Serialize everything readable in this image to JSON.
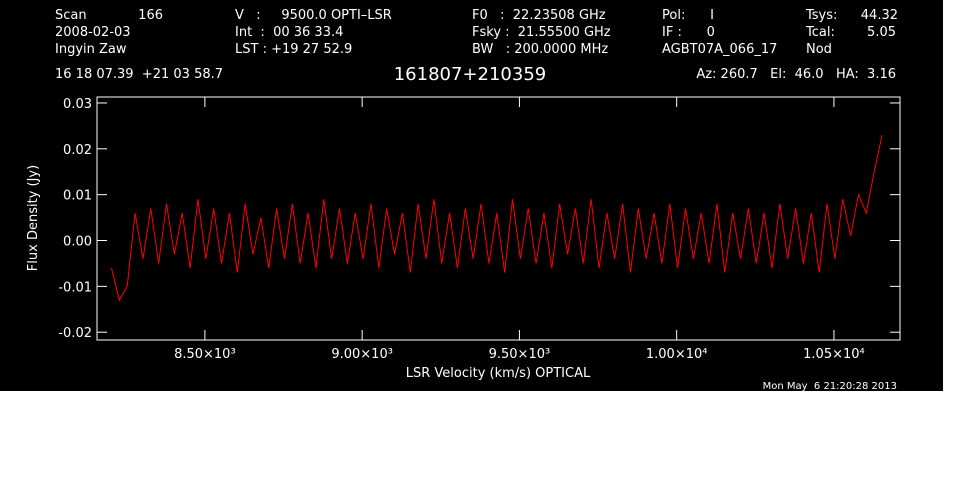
{
  "chart_data": {
    "type": "line",
    "title": "161807+210359",
    "header": [
      "Scan",
      "166",
      "2008-02-03",
      "Ingyin Zaw",
      "V   :     9500.0 OPTI–LSR",
      "Int  :  00 36 33.4",
      "LST : +19 27 52.9",
      "F0   :  22.23508 GHz",
      "Fsky :  21.55500 GHz",
      "BW   : 200.0000 MHz",
      "Pol:      I",
      "IF :      0",
      "AGBT07A_066_17",
      "Tsys:",
      "44.32",
      "Tcal:",
      "5.05",
      "Nod",
      "16 18 07.39  +21 03 58.7",
      "Az: 260.7   El:  46.0   HA:  3.16"
    ],
    "x_label": "LSR Velocity (km/s) OPTICAL",
    "y_label": "Flux Density (Jy)",
    "timestamp": "Mon May  6 21:20:28 2013",
    "xlim": [
      8157,
      10710
    ],
    "ylim": [
      -0.0217,
      0.0313
    ],
    "xticks": [
      {
        "value": 8500,
        "label": "8.50×10³"
      },
      {
        "value": 9000,
        "label": "9.00×10³"
      },
      {
        "value": 9500,
        "label": "9.50×10³"
      },
      {
        "value": 10000,
        "label": "1.00×10⁴"
      },
      {
        "value": 10500,
        "label": "1.05×10⁴"
      }
    ],
    "yticks": [
      0.03,
      0.02,
      0.01,
      {
        "value": 0,
        "label": "0.00"
      },
      -0.01,
      -0.02
    ],
    "x": [
      8203,
      8228,
      8253,
      8278,
      8303,
      8328,
      8353,
      8378,
      8403,
      8428,
      8453,
      8478,
      8503,
      8528,
      8553,
      8578,
      8603,
      8628,
      8653,
      8678,
      8703,
      8728,
      8753,
      8778,
      8803,
      8828,
      8853,
      8878,
      8903,
      8928,
      8953,
      8978,
      9003,
      9028,
      9053,
      9078,
      9103,
      9128,
      9153,
      9178,
      9203,
      9228,
      9253,
      9278,
      9303,
      9328,
      9353,
      9378,
      9403,
      9428,
      9453,
      9478,
      9503,
      9528,
      9553,
      9578,
      9603,
      9628,
      9653,
      9678,
      9703,
      9728,
      9753,
      9778,
      9803,
      9828,
      9853,
      9878,
      9903,
      9928,
      9953,
      9978,
      10003,
      10028,
      10053,
      10078,
      10103,
      10128,
      10153,
      10178,
      10203,
      10228,
      10253,
      10278,
      10303,
      10328,
      10353,
      10378,
      10403,
      10428,
      10453,
      10478,
      10503,
      10528,
      10553,
      10578,
      10603,
      10628,
      10653
    ],
    "series": [
      {
        "color": "#ff0000",
        "values": [
          -0.006,
          -0.013,
          -0.01,
          0.006,
          -0.004,
          0.007,
          -0.005,
          0.008,
          -0.003,
          0.006,
          -0.006,
          0.009,
          -0.004,
          0.007,
          -0.005,
          0.006,
          -0.007,
          0.008,
          -0.003,
          0.005,
          -0.006,
          0.007,
          -0.004,
          0.008,
          -0.005,
          0.006,
          -0.006,
          0.009,
          -0.004,
          0.007,
          -0.005,
          0.006,
          -0.004,
          0.008,
          -0.006,
          0.007,
          -0.003,
          0.006,
          -0.007,
          0.008,
          -0.004,
          0.009,
          -0.005,
          0.006,
          -0.006,
          0.007,
          -0.004,
          0.008,
          -0.005,
          0.006,
          -0.007,
          0.009,
          -0.004,
          0.007,
          -0.005,
          0.006,
          -0.006,
          0.008,
          -0.003,
          0.007,
          -0.005,
          0.009,
          -0.006,
          0.006,
          -0.004,
          0.008,
          -0.007,
          0.007,
          -0.004,
          0.006,
          -0.005,
          0.008,
          -0.006,
          0.007,
          -0.004,
          0.006,
          -0.005,
          0.008,
          -0.007,
          0.006,
          -0.004,
          0.007,
          -0.005,
          0.006,
          -0.006,
          0.008,
          -0.004,
          0.007,
          -0.005,
          0.006,
          -0.007,
          0.008,
          -0.004,
          0.009,
          0.001,
          0.01,
          0.006,
          0.015,
          0.023
        ]
      }
    ]
  }
}
